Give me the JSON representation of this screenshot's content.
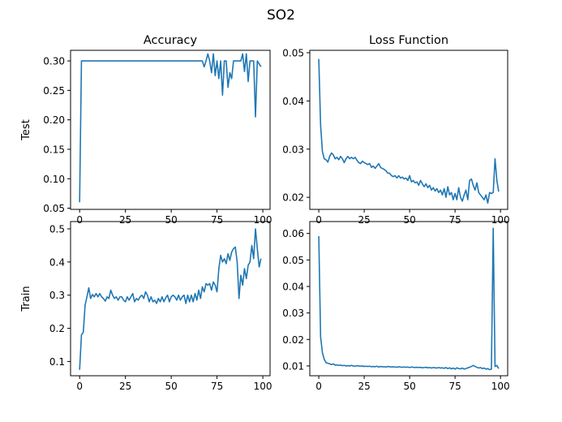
{
  "figure": {
    "title": "SO2"
  },
  "chart_data": [
    {
      "type": "line",
      "title": "Accuracy",
      "ylabel": "Test",
      "xlim": [
        -4.95,
        103.95
      ],
      "ylim": [
        0.048,
        0.318
      ],
      "xticks": [
        0,
        25,
        50,
        75,
        100
      ],
      "yticks": [
        0.05,
        0.1,
        0.15,
        0.2,
        0.25,
        0.3
      ],
      "ytick_labels": [
        "0.05",
        "0.10",
        "0.15",
        "0.20",
        "0.25",
        "0.30"
      ],
      "color": "#1f77b4",
      "series": [
        {
          "values": [
            0.06,
            0.3,
            0.3,
            0.3,
            0.3,
            0.3,
            0.3,
            0.3,
            0.3,
            0.3,
            0.3,
            0.3,
            0.3,
            0.3,
            0.3,
            0.3,
            0.3,
            0.3,
            0.3,
            0.3,
            0.3,
            0.3,
            0.3,
            0.3,
            0.3,
            0.3,
            0.3,
            0.3,
            0.3,
            0.3,
            0.3,
            0.3,
            0.3,
            0.3,
            0.3,
            0.3,
            0.3,
            0.3,
            0.3,
            0.3,
            0.3,
            0.3,
            0.3,
            0.3,
            0.3,
            0.3,
            0.3,
            0.3,
            0.3,
            0.3,
            0.3,
            0.3,
            0.3,
            0.3,
            0.3,
            0.3,
            0.3,
            0.3,
            0.3,
            0.3,
            0.3,
            0.3,
            0.3,
            0.3,
            0.3,
            0.3,
            0.3,
            0.3,
            0.29,
            0.3,
            0.312,
            0.3,
            0.28,
            0.312,
            0.275,
            0.3,
            0.27,
            0.3,
            0.242,
            0.3,
            0.3,
            0.255,
            0.28,
            0.27,
            0.3,
            0.3,
            0.3,
            0.3,
            0.3,
            0.312,
            0.282,
            0.312,
            0.265,
            0.3,
            0.3,
            0.3,
            0.205,
            0.3,
            0.295,
            0.29
          ]
        }
      ]
    },
    {
      "type": "line",
      "title": "Loss Function",
      "ylabel": "",
      "xlim": [
        -4.95,
        103.95
      ],
      "ylim": [
        0.0175,
        0.0505
      ],
      "xticks": [
        0,
        25,
        50,
        75,
        100
      ],
      "yticks": [
        0.02,
        0.03,
        0.04,
        0.05
      ],
      "ytick_labels": [
        "0.02",
        "0.03",
        "0.04",
        "0.05"
      ],
      "color": "#1f77b4",
      "series": [
        {
          "values": [
            0.0487,
            0.035,
            0.0295,
            0.028,
            0.0278,
            0.0273,
            0.0285,
            0.0292,
            0.0288,
            0.028,
            0.0283,
            0.0278,
            0.0285,
            0.028,
            0.0272,
            0.028,
            0.0285,
            0.028,
            0.0283,
            0.028,
            0.0283,
            0.0277,
            0.0272,
            0.027,
            0.0275,
            0.0272,
            0.027,
            0.0268,
            0.027,
            0.0262,
            0.0265,
            0.026,
            0.0265,
            0.027,
            0.0262,
            0.026,
            0.0258,
            0.0255,
            0.025,
            0.025,
            0.0245,
            0.0243,
            0.0245,
            0.024,
            0.0245,
            0.024,
            0.0242,
            0.0238,
            0.024,
            0.0235,
            0.0245,
            0.0232,
            0.0235,
            0.023,
            0.0232,
            0.0225,
            0.0235,
            0.0228,
            0.0222,
            0.0228,
            0.022,
            0.0225,
            0.0215,
            0.022,
            0.0213,
            0.0218,
            0.021,
            0.0215,
            0.0205,
            0.0218,
            0.02,
            0.0222,
            0.0205,
            0.021,
            0.0195,
            0.0208,
            0.0195,
            0.022,
            0.02,
            0.0192,
            0.0205,
            0.0215,
            0.0195,
            0.0235,
            0.0238,
            0.0225,
            0.0215,
            0.023,
            0.021,
            0.0205,
            0.02,
            0.0195,
            0.0205,
            0.0188,
            0.021,
            0.0208,
            0.021,
            0.028,
            0.0235,
            0.0212
          ]
        }
      ]
    },
    {
      "type": "line",
      "title": "",
      "ylabel": "Train",
      "xlim": [
        -4.95,
        103.95
      ],
      "ylim": [
        0.057,
        0.522
      ],
      "xticks": [
        0,
        25,
        50,
        75,
        100
      ],
      "yticks": [
        0.1,
        0.2,
        0.3,
        0.4,
        0.5
      ],
      "ytick_labels": [
        "0.1",
        "0.2",
        "0.3",
        "0.4",
        "0.5"
      ],
      "color": "#1f77b4",
      "series": [
        {
          "values": [
            0.075,
            0.18,
            0.188,
            0.27,
            0.295,
            0.322,
            0.29,
            0.302,
            0.295,
            0.305,
            0.295,
            0.305,
            0.295,
            0.29,
            0.282,
            0.295,
            0.29,
            0.315,
            0.3,
            0.29,
            0.295,
            0.285,
            0.295,
            0.295,
            0.285,
            0.28,
            0.295,
            0.285,
            0.295,
            0.305,
            0.28,
            0.29,
            0.285,
            0.295,
            0.3,
            0.29,
            0.31,
            0.3,
            0.28,
            0.295,
            0.28,
            0.285,
            0.275,
            0.29,
            0.28,
            0.295,
            0.28,
            0.292,
            0.3,
            0.28,
            0.295,
            0.3,
            0.295,
            0.285,
            0.3,
            0.285,
            0.295,
            0.3,
            0.275,
            0.3,
            0.28,
            0.3,
            0.28,
            0.305,
            0.285,
            0.315,
            0.29,
            0.325,
            0.31,
            0.335,
            0.33,
            0.335,
            0.315,
            0.34,
            0.33,
            0.31,
            0.38,
            0.42,
            0.4,
            0.41,
            0.395,
            0.425,
            0.405,
            0.43,
            0.44,
            0.445,
            0.4,
            0.29,
            0.36,
            0.33,
            0.38,
            0.35,
            0.39,
            0.4,
            0.45,
            0.41,
            0.5,
            0.44,
            0.385,
            0.41
          ]
        }
      ]
    },
    {
      "type": "line",
      "title": "",
      "ylabel": "",
      "xlim": [
        -4.95,
        103.95
      ],
      "ylim": [
        0.0063,
        0.0645
      ],
      "xticks": [
        0,
        25,
        50,
        75,
        100
      ],
      "yticks": [
        0.01,
        0.02,
        0.03,
        0.04,
        0.05,
        0.06
      ],
      "ytick_labels": [
        "0.01",
        "0.02",
        "0.03",
        "0.04",
        "0.05",
        "0.06"
      ],
      "color": "#1f77b4",
      "series": [
        {
          "values": [
            0.059,
            0.021,
            0.015,
            0.0125,
            0.0112,
            0.011,
            0.0108,
            0.0105,
            0.0108,
            0.0103,
            0.0104,
            0.0102,
            0.0103,
            0.0101,
            0.0102,
            0.01,
            0.0101,
            0.01,
            0.0102,
            0.01,
            0.0099,
            0.0101,
            0.01,
            0.0099,
            0.01,
            0.0098,
            0.0099,
            0.0098,
            0.0099,
            0.0097,
            0.0098,
            0.0097,
            0.0099,
            0.0096,
            0.0098,
            0.0097,
            0.0097,
            0.0096,
            0.0098,
            0.0097,
            0.0096,
            0.0097,
            0.0096,
            0.0095,
            0.0097,
            0.0096,
            0.0095,
            0.0096,
            0.0095,
            0.0096,
            0.0094,
            0.0096,
            0.0095,
            0.0094,
            0.0095,
            0.0094,
            0.0095,
            0.0093,
            0.0094,
            0.0095,
            0.0093,
            0.0094,
            0.0092,
            0.0094,
            0.0093,
            0.0092,
            0.0094,
            0.0092,
            0.0093,
            0.0091,
            0.0094,
            0.009,
            0.0093,
            0.0089,
            0.0092,
            0.0088,
            0.0093,
            0.009,
            0.0089,
            0.0092,
            0.0088,
            0.009,
            0.0093,
            0.0095,
            0.0098,
            0.0102,
            0.0098,
            0.0095,
            0.0092,
            0.0094,
            0.009,
            0.0092,
            0.0088,
            0.009,
            0.0086,
            0.0088,
            0.062,
            0.0098,
            0.0102,
            0.009
          ]
        }
      ]
    }
  ]
}
